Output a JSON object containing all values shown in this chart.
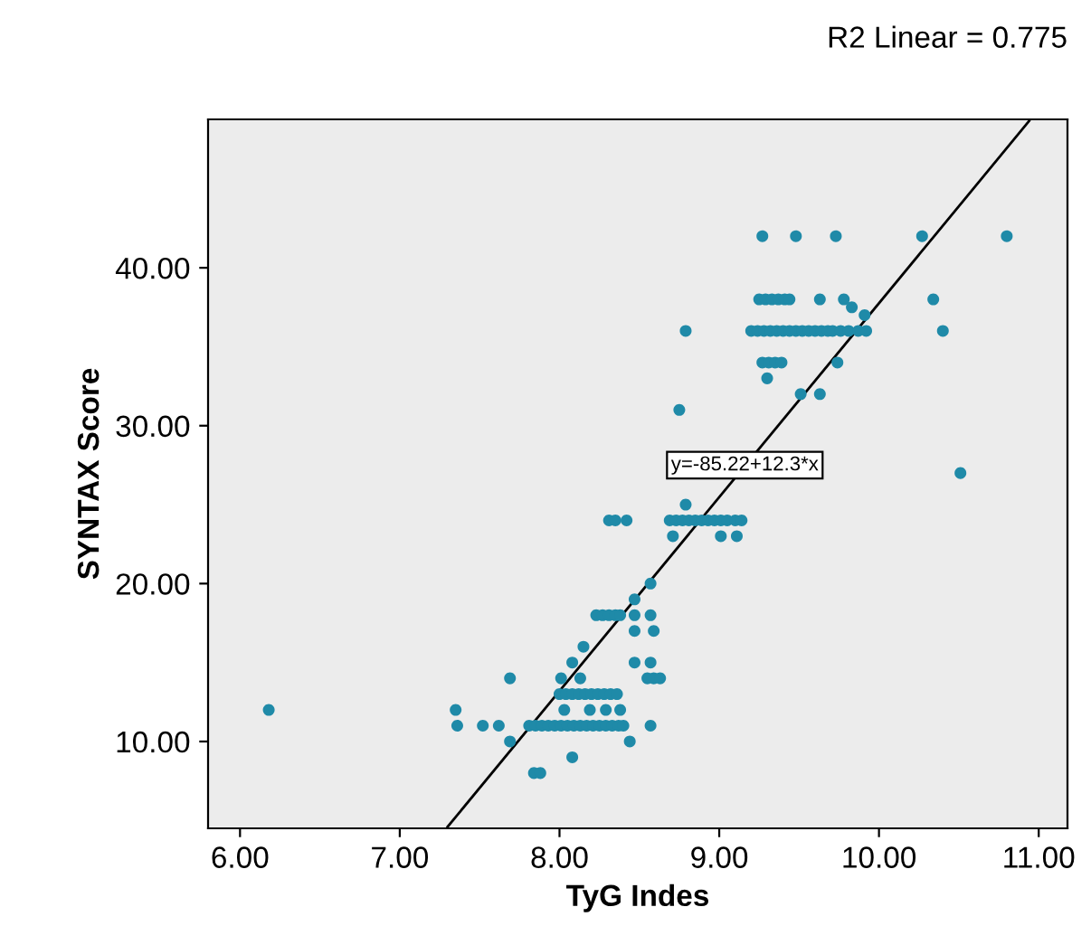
{
  "chart_data": {
    "type": "scatter",
    "xlabel": "TyG Indes",
    "ylabel": "SYNTAX Score",
    "xlim": [
      5.8,
      11.18
    ],
    "ylim": [
      4.5,
      49.4
    ],
    "xticks": [
      {
        "value": 6,
        "label": "6.00"
      },
      {
        "value": 7,
        "label": "7.00"
      },
      {
        "value": 8,
        "label": "8.00"
      },
      {
        "value": 9,
        "label": "9.00"
      },
      {
        "value": 10,
        "label": "10.00"
      },
      {
        "value": 11,
        "label": "11.00"
      }
    ],
    "yticks": [
      {
        "value": 10,
        "label": "10.00"
      },
      {
        "value": 20,
        "label": "20.00"
      },
      {
        "value": 30,
        "label": "30.00"
      },
      {
        "value": 40,
        "label": "40.00"
      }
    ],
    "annotations": [
      "R2 Linear = 0.775",
      {
        "text": "y=-85.22+12.3*x",
        "x": 9.16,
        "y": 27.5
      }
    ],
    "series": [
      {
        "color": "#1f8aa8",
        "marker": "circle",
        "x": [
          6.18,
          7.35,
          8.03,
          8.19,
          8.29,
          8.38,
          7.36,
          7.52,
          7.62,
          7.81,
          7.85,
          7.89,
          7.93,
          7.97,
          8.01,
          8.05,
          8.09,
          8.13,
          8.17,
          8.21,
          8.25,
          8.29,
          8.33,
          8.37,
          8.4,
          8.57,
          7.69,
          8.01,
          8.13,
          8.55,
          8.59,
          8.63,
          7.69,
          8.44,
          7.84,
          7.88,
          8.0,
          8.04,
          8.08,
          8.12,
          8.16,
          8.2,
          8.24,
          8.28,
          8.32,
          8.36,
          8.08,
          8.47,
          8.57,
          8.15,
          8.08,
          8.23,
          8.27,
          8.31,
          8.35,
          8.38,
          8.47,
          8.57,
          8.47,
          8.59,
          8.47,
          8.57,
          8.31,
          8.35,
          8.42,
          8.69,
          8.73,
          8.77,
          8.81,
          8.85,
          8.89,
          8.93,
          8.97,
          9.01,
          9.05,
          9.1,
          9.14,
          8.79,
          8.71,
          9.01,
          9.11,
          9.27,
          9.48,
          9.73,
          10.27,
          10.8,
          9.25,
          9.29,
          9.33,
          9.37,
          9.41,
          9.44,
          9.63,
          9.78,
          10.34,
          9.83,
          9.91,
          8.79,
          9.2,
          9.24,
          9.28,
          9.32,
          9.36,
          9.4,
          9.44,
          9.48,
          9.52,
          9.56,
          9.6,
          9.64,
          9.68,
          9.71,
          9.76,
          9.81,
          9.87,
          9.92,
          10.4,
          9.27,
          9.31,
          9.35,
          9.39,
          9.74,
          9.3,
          9.51,
          9.63,
          8.75,
          10.51
        ],
        "values": [
          12,
          12,
          12,
          12,
          12,
          12,
          11,
          11,
          11,
          11,
          11,
          11,
          11,
          11,
          11,
          11,
          11,
          11,
          11,
          11,
          11,
          11,
          11,
          11,
          11,
          11,
          14,
          14,
          14,
          14,
          14,
          14,
          10,
          10,
          8,
          8,
          13,
          13,
          13,
          13,
          13,
          13,
          13,
          13,
          13,
          13,
          15,
          15,
          15,
          16,
          9,
          18,
          18,
          18,
          18,
          18,
          18,
          18,
          17,
          17,
          19,
          20,
          24,
          24,
          24,
          24,
          24,
          24,
          24,
          24,
          24,
          24,
          24,
          24,
          24,
          24,
          24,
          25,
          23,
          23,
          23,
          42,
          42,
          42,
          42,
          42,
          38,
          38,
          38,
          38,
          38,
          38,
          38,
          38,
          38,
          37.5,
          37,
          36,
          36,
          36,
          36,
          36,
          36,
          36,
          36,
          36,
          36,
          36,
          36,
          36,
          36,
          36,
          36,
          36,
          36,
          36,
          36,
          34,
          34,
          34,
          34,
          34,
          33,
          32,
          32,
          31,
          27
        ]
      },
      {
        "type": "line",
        "color": "#000000",
        "line_style": "solid",
        "x": [
          7.3,
          10.94
        ],
        "values": [
          4.6,
          49.3
        ]
      }
    ]
  }
}
